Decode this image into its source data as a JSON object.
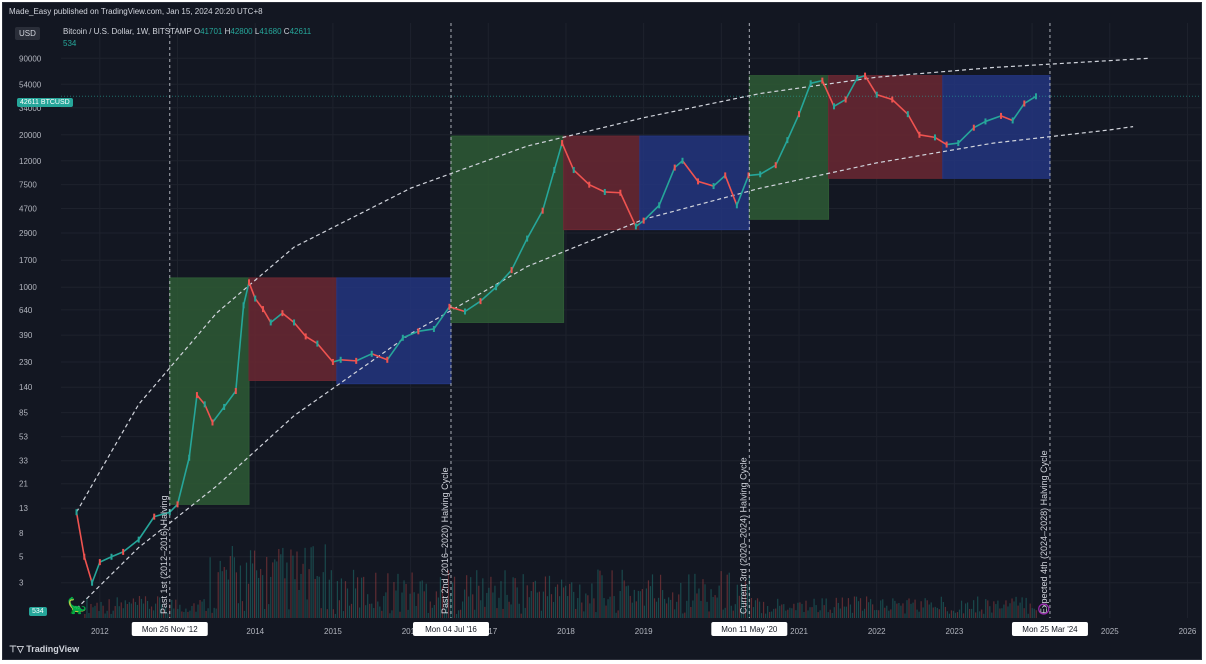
{
  "publisher": "Made_Easy published on TradingView.com, Jan 15, 2024 20:20 UTC+8",
  "currency": "USD",
  "symbol": {
    "name": "Bitcoin / U.S. Dollar, 1W, BITSTAMP",
    "open_label": "O",
    "open": "41701",
    "high_label": "H",
    "high": "42800",
    "low_label": "L",
    "low": "41680",
    "close_label": "C",
    "close": "42611",
    "volume": "534"
  },
  "price_badge": {
    "value": "42611",
    "symbol": "BTCUSD"
  },
  "volume_badge": "534",
  "footer_logo": "TradingView",
  "colors": {
    "background": "#131722",
    "green_zone": "#2e5a35",
    "red_zone": "#6b2832",
    "blue_zone": "#23357f",
    "candle_up": "#26a69a",
    "candle_down": "#ef5350",
    "price_line": "#26a69a"
  },
  "chart_data": {
    "type": "line",
    "scale": "log",
    "ylim": [
      1.5,
      180000
    ],
    "xlim": [
      2011.5,
      2026.2
    ],
    "y_ticks": [
      3,
      5,
      8,
      13,
      21,
      33,
      53,
      85,
      140,
      230,
      390,
      640,
      1000,
      1700,
      2900,
      4700,
      7500,
      12000,
      20000,
      34000,
      54000,
      90000
    ],
    "x_ticks": [
      "2012",
      "2013",
      "2014",
      "2015",
      "2016",
      "2017",
      "2018",
      "2019",
      "2020",
      "2021",
      "2022",
      "2023",
      "2024",
      "2025",
      "2026"
    ],
    "price_series": {
      "name": "BTCUSD",
      "x": [
        2011.7,
        2011.8,
        2011.9,
        2012.0,
        2012.15,
        2012.3,
        2012.5,
        2012.7,
        2012.9,
        2013.0,
        2013.15,
        2013.25,
        2013.35,
        2013.45,
        2013.6,
        2013.75,
        2013.85,
        2013.92,
        2014.0,
        2014.1,
        2014.2,
        2014.35,
        2014.5,
        2014.65,
        2014.8,
        2015.0,
        2015.1,
        2015.3,
        2015.5,
        2015.7,
        2015.9,
        2016.1,
        2016.3,
        2016.5,
        2016.7,
        2016.9,
        2017.1,
        2017.3,
        2017.5,
        2017.7,
        2017.85,
        2017.95,
        2018.1,
        2018.3,
        2018.5,
        2018.7,
        2018.9,
        2019.0,
        2019.2,
        2019.4,
        2019.5,
        2019.7,
        2019.9,
        2020.05,
        2020.2,
        2020.35,
        2020.5,
        2020.7,
        2020.85,
        2021.0,
        2021.15,
        2021.3,
        2021.45,
        2021.6,
        2021.75,
        2021.85,
        2022.0,
        2022.2,
        2022.4,
        2022.55,
        2022.75,
        2022.9,
        2023.05,
        2023.25,
        2023.4,
        2023.6,
        2023.75,
        2023.9,
        2024.05
      ],
      "y": [
        12,
        5,
        3,
        4.5,
        5,
        5.5,
        7,
        11,
        12,
        14,
        35,
        120,
        100,
        70,
        95,
        130,
        700,
        1100,
        800,
        650,
        500,
        600,
        500,
        380,
        330,
        230,
        240,
        235,
        270,
        240,
        370,
        420,
        440,
        680,
        620,
        760,
        1000,
        1400,
        2600,
        4500,
        10000,
        17000,
        10000,
        7500,
        6500,
        6400,
        3300,
        3700,
        5000,
        10500,
        12000,
        8000,
        7300,
        9000,
        5000,
        9000,
        9200,
        11000,
        18000,
        30000,
        55000,
        58000,
        35000,
        40000,
        61000,
        64000,
        44000,
        40000,
        30000,
        20000,
        19000,
        16500,
        17000,
        23000,
        26000,
        29000,
        26500,
        37000,
        42611
      ]
    },
    "trend_bands": {
      "upper": {
        "x": [
          2011.7,
          2012.5,
          2013.5,
          2014.5,
          2016.0,
          2017.5,
          2019.0,
          2020.5,
          2022.0,
          2023.5,
          2025.0,
          2025.5
        ],
        "y": [
          12,
          100,
          600,
          2200,
          7000,
          16000,
          28000,
          45000,
          62000,
          75000,
          86000,
          90000
        ]
      },
      "lower": {
        "x": [
          2011.7,
          2012.5,
          2013.5,
          2014.5,
          2016.0,
          2017.5,
          2019.0,
          2020.5,
          2022.0,
          2023.5,
          2025.0,
          2025.3
        ],
        "y": [
          1.8,
          6,
          20,
          80,
          400,
          1500,
          3800,
          7000,
          11500,
          17000,
          22000,
          23500
        ]
      }
    },
    "zones": [
      {
        "type": "green",
        "x0": 2012.9,
        "x1": 2013.92,
        "y0": 14,
        "y1": 1200
      },
      {
        "type": "red",
        "x0": 2013.92,
        "x1": 2015.05,
        "y0": 160,
        "y1": 1200
      },
      {
        "type": "blue",
        "x0": 2015.05,
        "x1": 2016.52,
        "y0": 150,
        "y1": 1200
      },
      {
        "type": "green",
        "x0": 2016.52,
        "x1": 2017.97,
        "y0": 500,
        "y1": 19500
      },
      {
        "type": "red",
        "x0": 2017.97,
        "x1": 2018.95,
        "y0": 3100,
        "y1": 19500
      },
      {
        "type": "blue",
        "x0": 2018.95,
        "x1": 2020.36,
        "y0": 3100,
        "y1": 19500
      },
      {
        "type": "green",
        "x0": 2020.36,
        "x1": 2021.38,
        "y0": 3800,
        "y1": 64000
      },
      {
        "type": "red",
        "x0": 2021.38,
        "x1": 2022.85,
        "y0": 8500,
        "y1": 64000
      },
      {
        "type": "blue",
        "x0": 2022.85,
        "x1": 2024.23,
        "y0": 8500,
        "y1": 64000
      }
    ],
    "events": [
      {
        "x": 2012.9,
        "date": "Mon 26 Nov '12",
        "label": "Past 1st (2012–2016) Halving"
      },
      {
        "x": 2016.52,
        "date": "Mon 04 Jul '16",
        "label": "Past 2nd (2016–2020) Halving Cycle"
      },
      {
        "x": 2020.36,
        "date": "Mon 11 May '20",
        "label": "Current 3rd (2020–2024) Halving Cycle"
      },
      {
        "x": 2024.23,
        "date": "Mon 25 Mar '24",
        "label": "Expected 4th (2024–2028) Halving Cycle"
      }
    ]
  }
}
